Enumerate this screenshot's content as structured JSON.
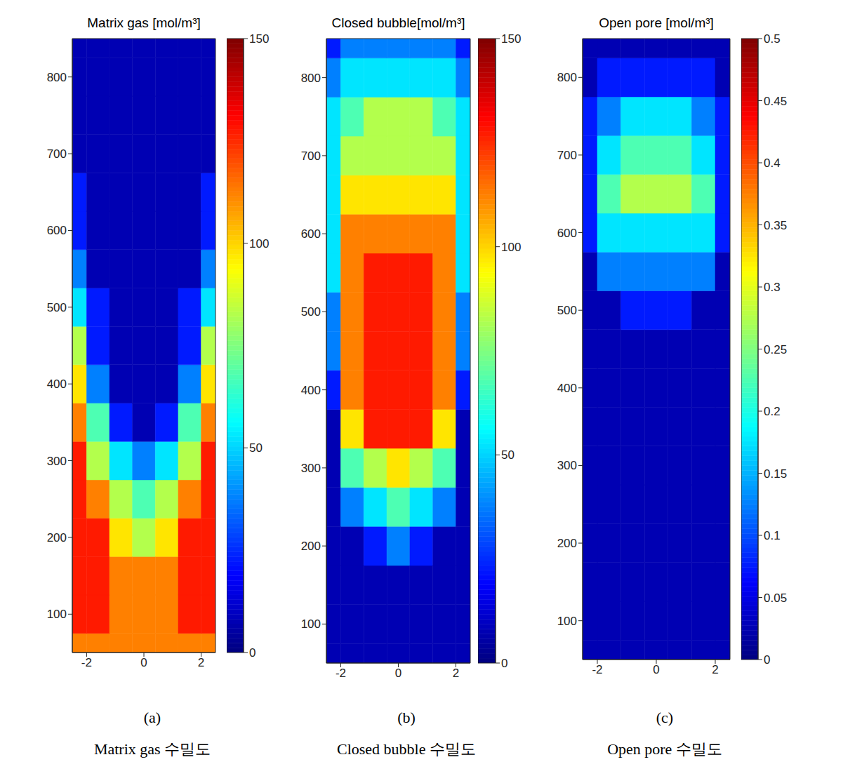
{
  "chart_data": [
    {
      "type": "contour",
      "title": "Matrix gas [mol/m³]",
      "annotations": [
        "(a)",
        "Matrix gas 수밀도"
      ],
      "xlim": [
        -2.5,
        2.5
      ],
      "xticks": [
        -2,
        0,
        2
      ],
      "ylim": [
        50,
        850
      ],
      "yticks": [
        100,
        200,
        300,
        400,
        500,
        600,
        700,
        800
      ],
      "x": [
        -2.4,
        -1.6,
        -0.8,
        0,
        0.8,
        1.6,
        2.4
      ],
      "y": [
        50,
        100,
        150,
        200,
        250,
        300,
        350,
        400,
        450,
        500,
        550,
        600,
        650,
        700,
        750,
        800,
        850
      ],
      "values": [
        [
          110,
          110,
          108,
          108,
          108,
          110,
          110
        ],
        [
          125,
          122,
          112,
          110,
          112,
          122,
          125
        ],
        [
          127,
          125,
          112,
          108,
          112,
          125,
          127
        ],
        [
          128,
          120,
          98,
          88,
          98,
          120,
          128
        ],
        [
          127,
          105,
          75,
          60,
          75,
          105,
          127
        ],
        [
          122,
          85,
          50,
          35,
          50,
          85,
          122
        ],
        [
          112,
          60,
          25,
          12,
          25,
          60,
          112
        ],
        [
          95,
          40,
          10,
          3,
          10,
          40,
          95
        ],
        [
          75,
          25,
          5,
          0,
          5,
          25,
          75
        ],
        [
          55,
          15,
          2,
          0,
          2,
          15,
          55
        ],
        [
          38,
          8,
          0,
          0,
          0,
          8,
          38
        ],
        [
          25,
          5,
          0,
          0,
          0,
          5,
          25
        ],
        [
          15,
          2,
          0,
          0,
          0,
          2,
          15
        ],
        [
          8,
          0,
          0,
          0,
          0,
          0,
          8
        ],
        [
          3,
          0,
          0,
          0,
          0,
          0,
          3
        ],
        [
          0,
          0,
          0,
          0,
          0,
          0,
          0
        ],
        [
          0,
          0,
          0,
          0,
          0,
          0,
          0
        ]
      ],
      "colorbar": {
        "range": [
          0,
          150
        ],
        "ticks": [
          0,
          50,
          100,
          150
        ]
      }
    },
    {
      "type": "contour",
      "title": "Closed bubble[mol/m³]",
      "annotations": [
        "(b)",
        "Closed bubble 수밀도"
      ],
      "xlim": [
        -2.5,
        2.5
      ],
      "xticks": [
        -2,
        0,
        2
      ],
      "ylim": [
        50,
        850
      ],
      "yticks": [
        100,
        200,
        300,
        400,
        500,
        600,
        700,
        800
      ],
      "x": [
        -2.4,
        -1.6,
        -0.8,
        0,
        0.8,
        1.6,
        2.4
      ],
      "y": [
        50,
        100,
        150,
        200,
        250,
        300,
        350,
        400,
        450,
        500,
        550,
        600,
        650,
        700,
        750,
        800,
        850
      ],
      "values": [
        [
          0,
          0,
          0,
          0,
          0,
          0,
          0
        ],
        [
          0,
          0,
          0,
          0,
          0,
          0,
          0
        ],
        [
          0,
          2,
          5,
          10,
          5,
          2,
          0
        ],
        [
          0,
          10,
          25,
          35,
          25,
          10,
          0
        ],
        [
          2,
          30,
          55,
          65,
          55,
          30,
          2
        ],
        [
          5,
          60,
          85,
          92,
          85,
          60,
          5
        ],
        [
          12,
          90,
          120,
          120,
          120,
          90,
          12
        ],
        [
          20,
          105,
          125,
          125,
          125,
          105,
          20
        ],
        [
          30,
          115,
          125,
          125,
          125,
          115,
          30
        ],
        [
          40,
          115,
          125,
          125,
          125,
          115,
          40
        ],
        [
          50,
          115,
          122,
          122,
          122,
          115,
          50
        ],
        [
          55,
          105,
          110,
          110,
          110,
          105,
          55
        ],
        [
          55,
          95,
          100,
          100,
          100,
          95,
          55
        ],
        [
          50,
          85,
          85,
          85,
          85,
          85,
          50
        ],
        [
          45,
          70,
          75,
          75,
          75,
          70,
          45
        ],
        [
          35,
          55,
          58,
          58,
          58,
          55,
          35
        ],
        [
          20,
          30,
          30,
          30,
          30,
          30,
          20
        ]
      ],
      "colorbar": {
        "range": [
          0,
          150
        ],
        "ticks": [
          0,
          50,
          100,
          150
        ]
      }
    },
    {
      "type": "contour",
      "title": "Open pore [mol/m³]",
      "annotations": [
        "(c)",
        "Open pore 수밀도"
      ],
      "xlim": [
        -2.5,
        2.5
      ],
      "xticks": [
        -2,
        0,
        2
      ],
      "ylim": [
        50,
        850
      ],
      "yticks": [
        100,
        200,
        300,
        400,
        500,
        600,
        700,
        800
      ],
      "x": [
        -2.4,
        -1.6,
        -0.8,
        0,
        0.8,
        1.6,
        2.4
      ],
      "y": [
        50,
        100,
        150,
        200,
        250,
        300,
        350,
        400,
        450,
        500,
        550,
        600,
        650,
        700,
        750,
        800,
        850
      ],
      "values": [
        [
          0,
          0,
          0,
          0,
          0,
          0,
          0
        ],
        [
          0,
          0,
          0,
          0,
          0,
          0,
          0
        ],
        [
          0,
          0,
          0,
          0,
          0,
          0,
          0
        ],
        [
          0,
          0,
          0,
          0,
          0,
          0,
          0
        ],
        [
          0,
          0,
          0,
          0,
          0,
          0,
          0
        ],
        [
          0,
          0,
          0,
          0,
          0,
          0,
          0
        ],
        [
          0,
          0,
          0,
          0,
          0,
          0,
          0
        ],
        [
          0,
          0,
          0,
          0,
          0,
          0,
          0
        ],
        [
          0,
          0,
          0,
          0,
          0,
          0,
          0
        ],
        [
          0.01,
          0.04,
          0.05,
          0.05,
          0.05,
          0.04,
          0.01
        ],
        [
          0.04,
          0.12,
          0.13,
          0.13,
          0.13,
          0.12,
          0.04
        ],
        [
          0.06,
          0.18,
          0.19,
          0.19,
          0.19,
          0.18,
          0.06
        ],
        [
          0.08,
          0.24,
          0.25,
          0.25,
          0.25,
          0.24,
          0.08
        ],
        [
          0.07,
          0.19,
          0.2,
          0.2,
          0.2,
          0.19,
          0.07
        ],
        [
          0.05,
          0.14,
          0.15,
          0.15,
          0.15,
          0.14,
          0.05
        ],
        [
          0.02,
          0.06,
          0.06,
          0.06,
          0.06,
          0.06,
          0.02
        ],
        [
          0,
          0,
          0,
          0,
          0,
          0,
          0
        ]
      ],
      "colorbar": {
        "range": [
          0,
          0.5
        ],
        "ticks": [
          0,
          0.05,
          0.1,
          0.15,
          0.2,
          0.25,
          0.3,
          0.35,
          0.4,
          0.45,
          0.5
        ]
      }
    }
  ]
}
